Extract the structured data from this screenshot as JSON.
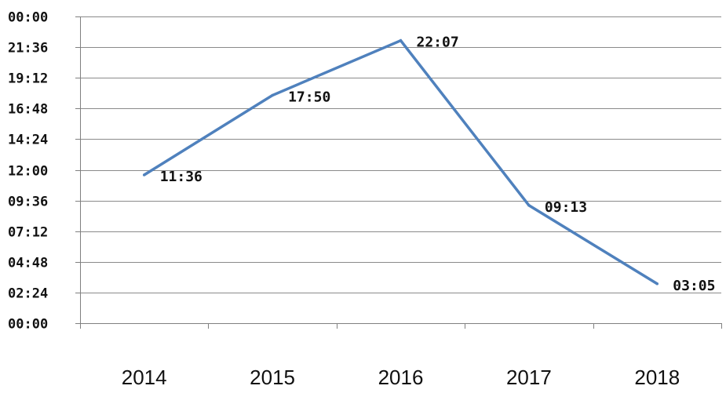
{
  "chart_data": {
    "type": "line",
    "title": "",
    "xlabel": "",
    "ylabel": "",
    "categories": [
      "2014",
      "2015",
      "2016",
      "2017",
      "2018"
    ],
    "series": [
      {
        "values_minutes": [
          696,
          1070,
          1327,
          553,
          185
        ],
        "data_labels": [
          "11:36",
          "17:50",
          "22:07",
          "09:13",
          "03:05"
        ],
        "color": "#4F81BD"
      }
    ],
    "yaxis": {
      "min_minutes": 0,
      "max_minutes": 1440,
      "tick_step_minutes": 144,
      "tick_labels": [
        "00:00",
        "02:24",
        "04:48",
        "07:12",
        "09:36",
        "12:00",
        "14:24",
        "16:48",
        "19:12",
        "21:36",
        "00:00"
      ]
    },
    "grid": true,
    "gridline_color": "#8a8a8a",
    "axis_color": "#808080",
    "legend": "none"
  }
}
